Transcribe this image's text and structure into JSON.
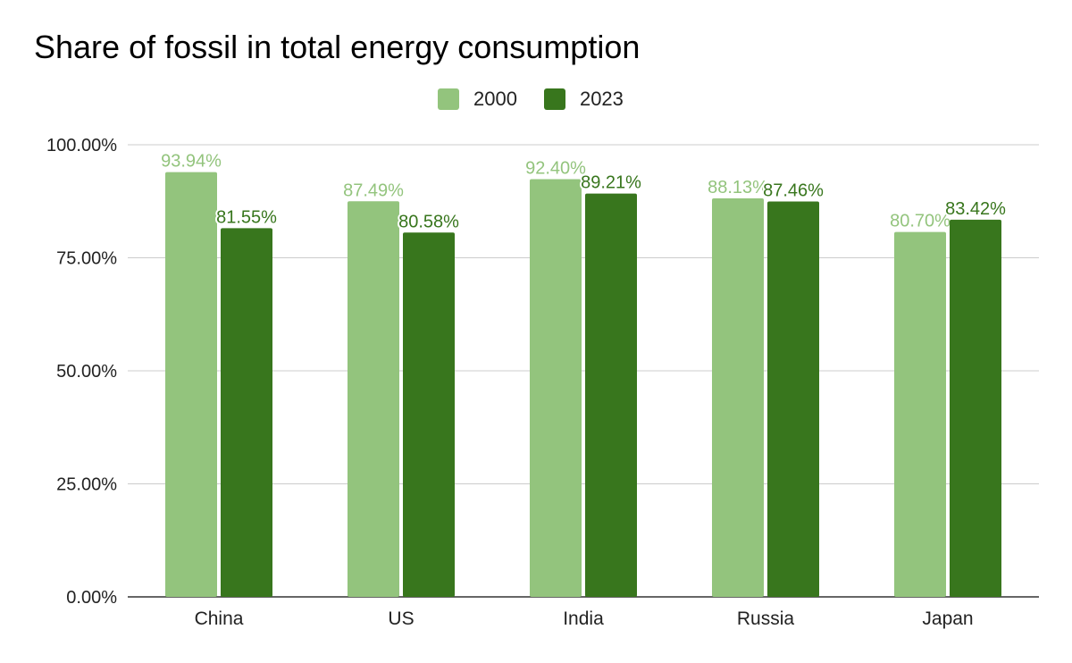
{
  "chart_data": {
    "type": "bar",
    "title": "Share of fossil in total energy consumption",
    "categories": [
      "China",
      "US",
      "India",
      "Russia",
      "Japan"
    ],
    "series": [
      {
        "name": "2000",
        "values": [
          93.94,
          87.49,
          92.4,
          88.13,
          80.7
        ],
        "color": "#93c47d",
        "label_color": "#93c47d",
        "labels": [
          "93.94%",
          "87.49%",
          "92.40%",
          "88.13%",
          "80.70%"
        ]
      },
      {
        "name": "2023",
        "values": [
          81.55,
          80.58,
          89.21,
          87.46,
          83.42
        ],
        "color": "#38761d",
        "label_color": "#38761d",
        "labels": [
          "81.55%",
          "80.58%",
          "89.21%",
          "87.46%",
          "83.42%"
        ]
      }
    ],
    "y_ticks": [
      0,
      25,
      50,
      75,
      100
    ],
    "y_tick_labels": [
      "0.00%",
      "25.00%",
      "50.00%",
      "75.00%",
      "100.00%"
    ],
    "ylim": [
      0,
      100
    ],
    "grid": true,
    "legend_position": "top-center",
    "gridline_color": "#cccccc",
    "axis_color": "#333333"
  }
}
